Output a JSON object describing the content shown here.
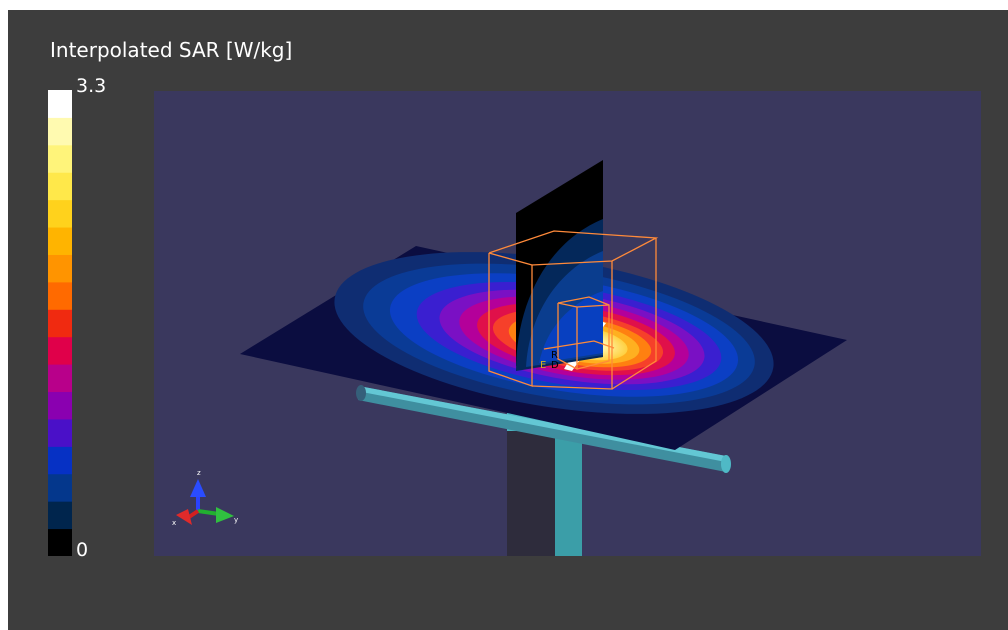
{
  "chart_data": {
    "type": "heatmap",
    "title": "Interpolated SAR [W/kg]",
    "scale_min": "0",
    "scale_max": "3.3",
    "range": [
      0,
      3.3
    ],
    "legend_position": "left",
    "colorbar": [
      "#000000",
      "#00254d",
      "#04378c",
      "#0631c4",
      "#4a10c8",
      "#8a00b0",
      "#b8008a",
      "#e0004a",
      "#f02a10",
      "#ff6a00",
      "#ff9400",
      "#ffb400",
      "#ffd21c",
      "#ffe84a",
      "#fff47a",
      "#fffab0",
      "#ffffff"
    ]
  },
  "scene": {
    "axis_labels": {
      "x": "x",
      "y": "y",
      "z": "z"
    },
    "markers": [
      "R",
      "D",
      "E"
    ]
  }
}
